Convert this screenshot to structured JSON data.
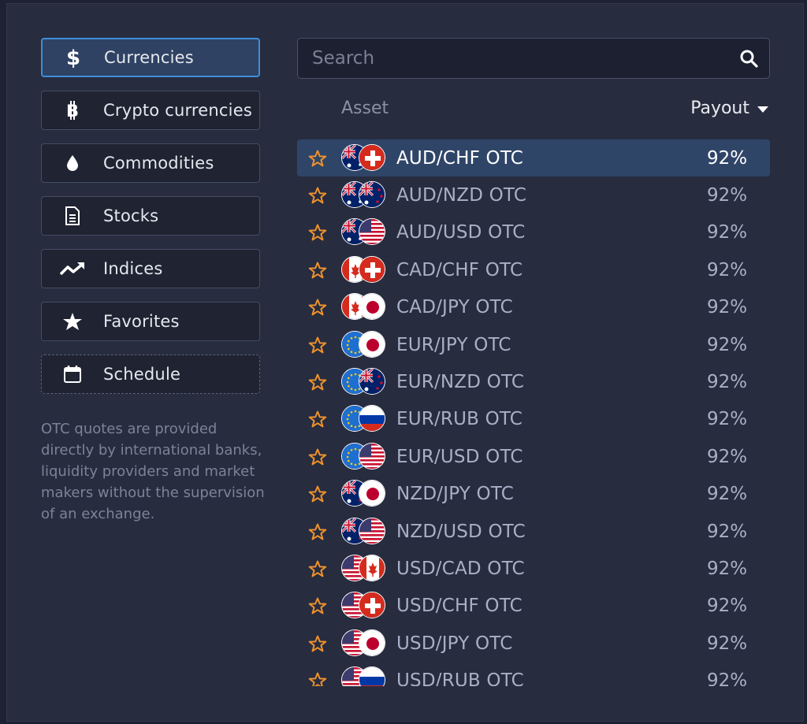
{
  "sidebar": {
    "categories": [
      {
        "label": "Currencies",
        "icon": "dollar-icon",
        "active": true
      },
      {
        "label": "Crypto currencies",
        "icon": "bitcoin-icon"
      },
      {
        "label": "Commodities",
        "icon": "drop-icon"
      },
      {
        "label": "Stocks",
        "icon": "document-icon"
      },
      {
        "label": "Indices",
        "icon": "trend-up-icon"
      },
      {
        "label": "Favorites",
        "icon": "star-icon"
      },
      {
        "label": "Schedule",
        "icon": "calendar-icon"
      }
    ],
    "note": "OTC quotes are provided directly by international banks, liquidity providers and market makers without the supervision of an exchange."
  },
  "search": {
    "placeholder": "Search"
  },
  "list_header": {
    "asset": "Asset",
    "payout": "Payout"
  },
  "assets": [
    {
      "name": "AUD/CHF OTC",
      "payout": "92%",
      "selected": true,
      "flags": [
        "au",
        "ch"
      ]
    },
    {
      "name": "AUD/NZD OTC",
      "payout": "92%",
      "flags": [
        "au",
        "nz"
      ]
    },
    {
      "name": "AUD/USD OTC",
      "payout": "92%",
      "flags": [
        "au",
        "us"
      ]
    },
    {
      "name": "CAD/CHF OTC",
      "payout": "92%",
      "flags": [
        "ca",
        "ch"
      ]
    },
    {
      "name": "CAD/JPY OTC",
      "payout": "92%",
      "flags": [
        "ca",
        "jp"
      ]
    },
    {
      "name": "EUR/JPY OTC",
      "payout": "92%",
      "flags": [
        "eu",
        "jp"
      ]
    },
    {
      "name": "EUR/NZD OTC",
      "payout": "92%",
      "flags": [
        "eu",
        "nz"
      ]
    },
    {
      "name": "EUR/RUB OTC",
      "payout": "92%",
      "flags": [
        "eu",
        "ru"
      ]
    },
    {
      "name": "EUR/USD OTC",
      "payout": "92%",
      "flags": [
        "eu",
        "us"
      ]
    },
    {
      "name": "NZD/JPY OTC",
      "payout": "92%",
      "flags": [
        "nz",
        "jp"
      ]
    },
    {
      "name": "NZD/USD OTC",
      "payout": "92%",
      "flags": [
        "nz",
        "us"
      ]
    },
    {
      "name": "USD/CAD OTC",
      "payout": "92%",
      "flags": [
        "us",
        "ca"
      ]
    },
    {
      "name": "USD/CHF OTC",
      "payout": "92%",
      "flags": [
        "us",
        "ch"
      ]
    },
    {
      "name": "USD/JPY OTC",
      "payout": "92%",
      "flags": [
        "us",
        "jp"
      ]
    },
    {
      "name": "USD/RUB OTC",
      "payout": "92%",
      "flags": [
        "us",
        "ru"
      ]
    }
  ],
  "colors": {
    "accent": "#3f8ed8",
    "star": "#f0922b",
    "selected_row": "#2f4568"
  }
}
